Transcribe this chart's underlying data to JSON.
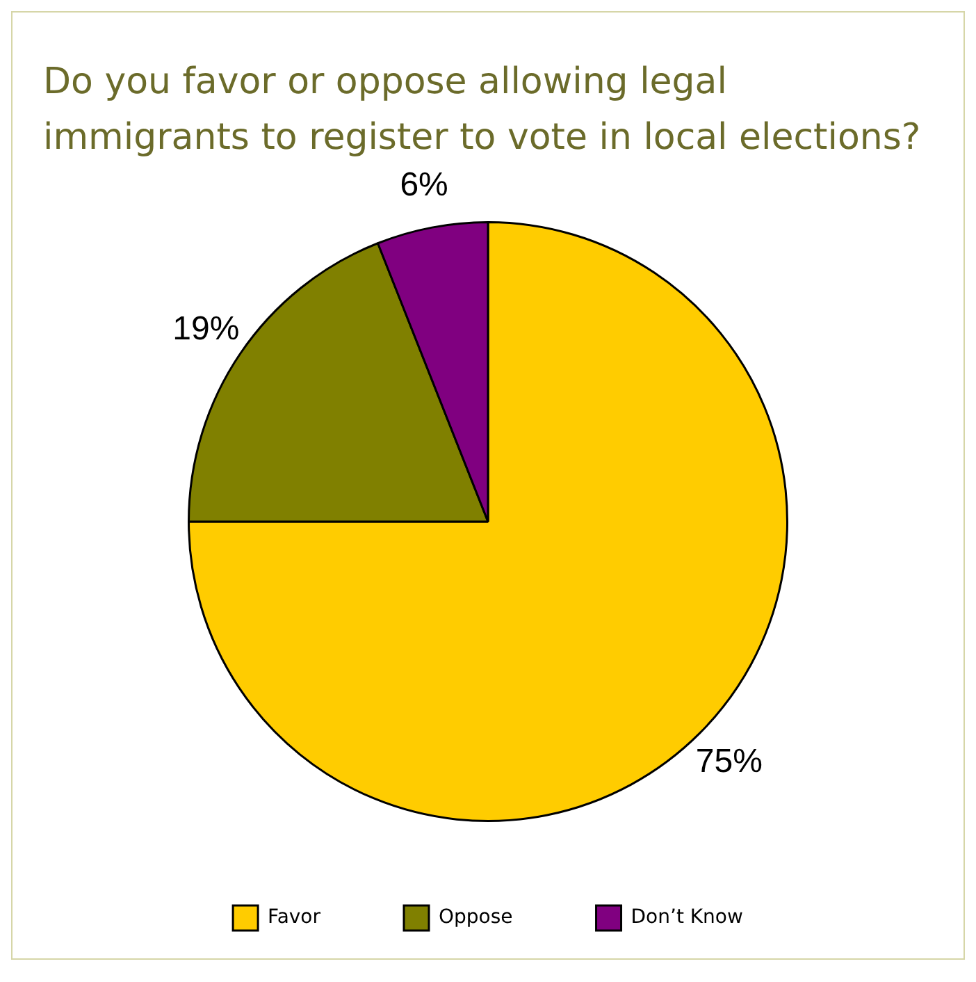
{
  "chart_data": {
    "type": "pie",
    "title": "Do you favor or oppose  allowing legal immigrants to register to vote in local elections?",
    "categories": [
      "Favor",
      "Oppose",
      "Don’t Know"
    ],
    "values": [
      75,
      19,
      6
    ],
    "colors": [
      "#ffcc00",
      "#808000",
      "#800080"
    ],
    "value_labels": [
      "75%",
      "19%",
      "6%"
    ],
    "legend": "bottom"
  }
}
